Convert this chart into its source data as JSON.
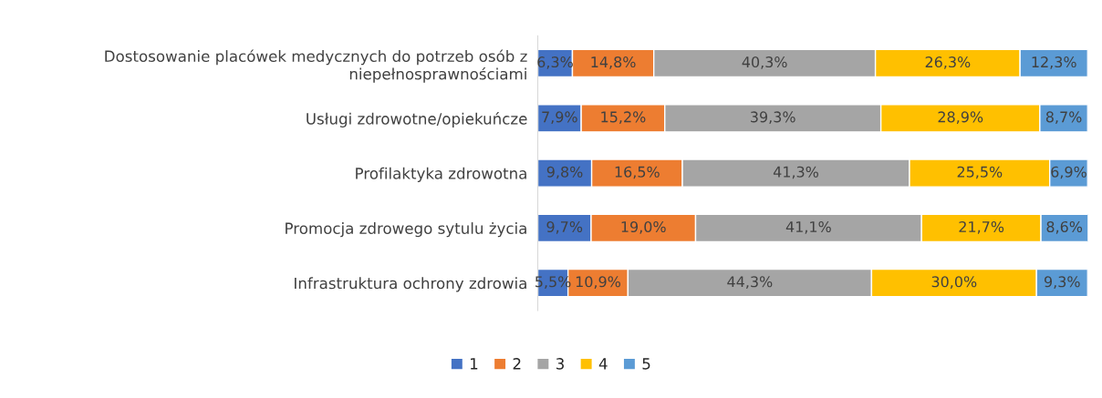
{
  "chart_data": {
    "type": "bar",
    "orientation": "horizontal",
    "stacked": true,
    "categories": [
      "Dostosowanie placówek medycznych do potrzeb osób z\nniepełnosprawnościami",
      "Usługi zdrowotne/opiekuńcze",
      "Profilaktyka zdrowotna",
      "Promocja zdrowego sytulu życia",
      "Infrastruktura ochrony zdrowia"
    ],
    "series": [
      {
        "name": "1",
        "color": "#4472c4",
        "values": [
          6.3,
          7.9,
          9.8,
          9.7,
          5.5
        ],
        "value_labels": [
          "6,3%",
          "7,9%",
          "9,8%",
          "9,7%",
          "5,5%"
        ]
      },
      {
        "name": "2",
        "color": "#ed7d31",
        "values": [
          14.8,
          15.2,
          16.5,
          19.0,
          10.9
        ],
        "value_labels": [
          "14,8%",
          "15,2%",
          "16,5%",
          "19,0%",
          "10,9%"
        ]
      },
      {
        "name": "3",
        "color": "#a5a5a5",
        "values": [
          40.3,
          39.3,
          41.3,
          41.1,
          44.3
        ],
        "value_labels": [
          "40,3%",
          "39,3%",
          "41,3%",
          "41,1%",
          "44,3%"
        ]
      },
      {
        "name": "4",
        "color": "#ffc000",
        "values": [
          26.3,
          28.9,
          25.5,
          21.7,
          30.0
        ],
        "value_labels": [
          "26,3%",
          "28,9%",
          "25,5%",
          "21,7%",
          "30,0%"
        ]
      },
      {
        "name": "5",
        "color": "#5b9bd5",
        "values": [
          12.3,
          8.7,
          6.9,
          8.6,
          9.3
        ],
        "value_labels": [
          "12,3%",
          "8,7%",
          "6,9%",
          "8,6%",
          "9,3%"
        ]
      }
    ],
    "xlim": [
      0,
      100
    ],
    "tick_labels": "y",
    "grid": false,
    "legend": "bottom"
  }
}
